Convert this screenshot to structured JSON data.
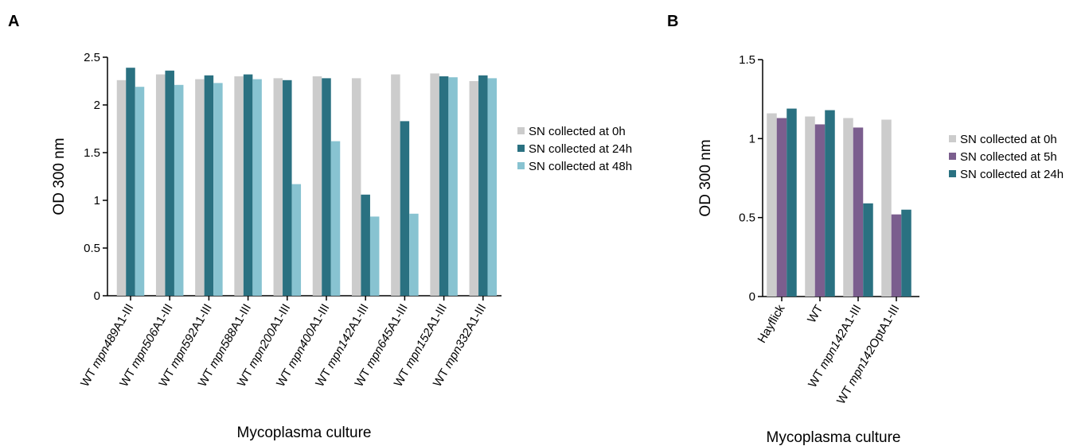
{
  "panels": [
    {
      "letter": "A"
    },
    {
      "letter": "B"
    }
  ],
  "chart_data": [
    {
      "type": "bar",
      "ylabel": "OD 300 nm",
      "xlabel": "Mycoplasma culture",
      "ylim": [
        0,
        2.5
      ],
      "yticks": [
        "0",
        "0.5",
        "1",
        "1.5",
        "2",
        "2.5"
      ],
      "grid": false,
      "legend_position": "right",
      "categories": [
        {
          "prefix": "WT ",
          "italic": "mpn489",
          "suffix": "A1-III"
        },
        {
          "prefix": "WT ",
          "italic": "mpn506",
          "suffix": "A1-III"
        },
        {
          "prefix": "WT ",
          "italic": "mpn592",
          "suffix": "A1-III"
        },
        {
          "prefix": "WT ",
          "italic": "mpn588",
          "suffix": "A1-III"
        },
        {
          "prefix": "WT ",
          "italic": "mpn200",
          "suffix": "A1-III"
        },
        {
          "prefix": "WT ",
          "italic": "mpn400",
          "suffix": "A1-III"
        },
        {
          "prefix": "WT ",
          "italic": "mpn142",
          "suffix": "A1-III"
        },
        {
          "prefix": "WT ",
          "italic": "mpn645",
          "suffix": "A1-III"
        },
        {
          "prefix": "WT ",
          "italic": "mpn152",
          "suffix": "A1-III"
        },
        {
          "prefix": "WT ",
          "italic": "mpn332",
          "suffix": "A1-III"
        }
      ],
      "series": [
        {
          "name": "SN collected at 0h",
          "color": "#cccccc",
          "values": [
            2.26,
            2.32,
            2.27,
            2.3,
            2.28,
            2.3,
            2.28,
            2.32,
            2.33,
            2.25
          ]
        },
        {
          "name": "SN collected at 24h",
          "color": "#2a7181",
          "values": [
            2.39,
            2.36,
            2.31,
            2.32,
            2.26,
            2.28,
            1.06,
            1.83,
            2.3,
            2.31
          ]
        },
        {
          "name": "SN collected at 48h",
          "color": "#88c3d1",
          "values": [
            2.19,
            2.21,
            2.23,
            2.27,
            1.17,
            1.62,
            0.83,
            0.86,
            2.29,
            2.28
          ]
        }
      ]
    },
    {
      "type": "bar",
      "ylabel": "OD 300 nm",
      "xlabel": "Mycoplasma culture",
      "ylim": [
        0,
        1.5
      ],
      "yticks": [
        "0",
        "0.5",
        "1",
        "1.5"
      ],
      "grid": false,
      "legend_position": "right",
      "categories": [
        {
          "prefix": "Hayflick",
          "italic": "",
          "suffix": ""
        },
        {
          "prefix": "WT",
          "italic": "",
          "suffix": ""
        },
        {
          "prefix": "WT ",
          "italic": "mpn142",
          "suffix": "A1-III"
        },
        {
          "prefix": "WT ",
          "italic": "mpn142",
          "suffix": "OptA1-III"
        }
      ],
      "series": [
        {
          "name": "SN collected at 0h",
          "color": "#cccccc",
          "values": [
            1.16,
            1.14,
            1.13,
            1.12
          ]
        },
        {
          "name": "SN collected at 5h",
          "color": "#7b5e8e",
          "values": [
            1.13,
            1.09,
            1.07,
            0.52
          ]
        },
        {
          "name": "SN collected at 24h",
          "color": "#2a7181",
          "values": [
            1.19,
            1.18,
            0.59,
            0.55
          ]
        }
      ]
    }
  ]
}
